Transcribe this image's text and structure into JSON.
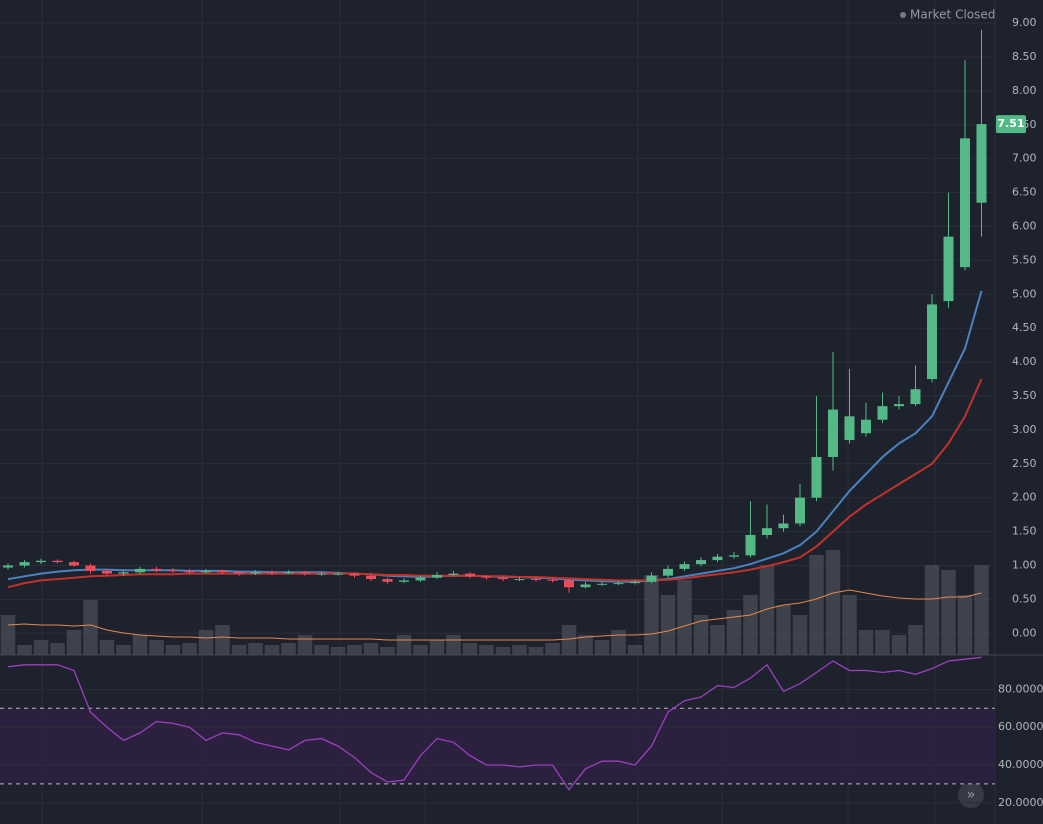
{
  "status_text": "Market Closed",
  "chart_data": [
    {
      "type": "candlestick",
      "open": [
        0.97,
        1.0,
        1.05,
        1.07,
        1.05,
        1.0,
        0.92,
        0.88,
        0.9,
        0.95,
        0.93,
        0.92,
        0.9,
        0.92,
        0.9,
        0.88,
        0.9,
        0.89,
        0.9,
        0.88,
        0.88,
        0.88,
        0.85,
        0.8,
        0.76,
        0.78,
        0.82,
        0.86,
        0.88,
        0.84,
        0.82,
        0.8,
        0.8,
        0.79,
        0.78,
        0.68,
        0.72,
        0.73,
        0.74,
        0.76,
        0.85,
        0.95,
        1.02,
        1.08,
        1.13,
        1.15,
        1.45,
        1.55,
        1.62,
        2.0,
        2.6,
        2.85,
        2.95,
        3.15,
        3.35,
        3.38,
        3.75,
        4.9,
        5.4,
        6.35
      ],
      "high": [
        1.03,
        1.08,
        1.1,
        1.09,
        1.07,
        1.03,
        0.95,
        0.93,
        0.98,
        0.98,
        0.96,
        0.95,
        0.95,
        0.94,
        0.92,
        0.93,
        0.93,
        0.93,
        0.92,
        0.91,
        0.91,
        0.9,
        0.87,
        0.82,
        0.81,
        0.85,
        0.9,
        0.92,
        0.9,
        0.86,
        0.84,
        0.83,
        0.83,
        0.82,
        0.8,
        0.76,
        0.76,
        0.77,
        0.79,
        0.9,
        1.0,
        1.06,
        1.12,
        1.17,
        1.2,
        1.95,
        1.9,
        1.75,
        2.2,
        3.5,
        4.15,
        3.9,
        3.4,
        3.55,
        3.5,
        3.95,
        5.0,
        6.5,
        8.45,
        8.9
      ],
      "low": [
        0.94,
        0.97,
        1.02,
        1.03,
        0.98,
        0.88,
        0.85,
        0.85,
        0.87,
        0.9,
        0.89,
        0.87,
        0.88,
        0.87,
        0.85,
        0.86,
        0.86,
        0.87,
        0.85,
        0.85,
        0.85,
        0.82,
        0.77,
        0.73,
        0.74,
        0.76,
        0.8,
        0.84,
        0.81,
        0.79,
        0.77,
        0.77,
        0.76,
        0.75,
        0.6,
        0.66,
        0.7,
        0.71,
        0.72,
        0.74,
        0.82,
        0.92,
        0.99,
        1.05,
        1.1,
        1.12,
        1.4,
        1.5,
        1.58,
        1.95,
        2.4,
        2.8,
        2.9,
        3.1,
        3.3,
        3.35,
        3.7,
        4.8,
        5.35,
        5.85
      ],
      "close": [
        1.0,
        1.05,
        1.07,
        1.05,
        1.0,
        0.92,
        0.88,
        0.9,
        0.95,
        0.93,
        0.92,
        0.9,
        0.92,
        0.9,
        0.88,
        0.9,
        0.89,
        0.9,
        0.88,
        0.88,
        0.88,
        0.85,
        0.8,
        0.76,
        0.78,
        0.82,
        0.86,
        0.88,
        0.84,
        0.82,
        0.8,
        0.8,
        0.79,
        0.78,
        0.68,
        0.72,
        0.73,
        0.74,
        0.76,
        0.85,
        0.95,
        1.02,
        1.08,
        1.13,
        1.15,
        1.45,
        1.55,
        1.62,
        2.0,
        2.6,
        3.3,
        3.2,
        3.15,
        3.35,
        3.38,
        3.6,
        4.85,
        5.85,
        7.3,
        7.51
      ],
      "volume": [
        40,
        10,
        15,
        12,
        25,
        55,
        15,
        10,
        20,
        15,
        10,
        12,
        25,
        30,
        10,
        12,
        10,
        12,
        20,
        10,
        8,
        10,
        12,
        8,
        20,
        10,
        15,
        20,
        12,
        10,
        8,
        10,
        8,
        12,
        30,
        20,
        15,
        25,
        10,
        80,
        60,
        75,
        40,
        30,
        45,
        60,
        90,
        50,
        40,
        100,
        105,
        60,
        25,
        25,
        20,
        30,
        90,
        85,
        60,
        90
      ],
      "vlim": [
        0,
        120
      ],
      "up_color": "#53b987",
      "down_color": "#eb4d5c",
      "volume_color": "#4a4d57",
      "moving_averages": [
        {
          "color": "#4a83c0",
          "values": [
            0.8,
            0.84,
            0.88,
            0.91,
            0.93,
            0.94,
            0.94,
            0.93,
            0.93,
            0.93,
            0.93,
            0.92,
            0.92,
            0.92,
            0.91,
            0.91,
            0.9,
            0.9,
            0.9,
            0.9,
            0.89,
            0.88,
            0.87,
            0.85,
            0.84,
            0.83,
            0.84,
            0.85,
            0.85,
            0.84,
            0.83,
            0.83,
            0.82,
            0.81,
            0.79,
            0.78,
            0.77,
            0.76,
            0.76,
            0.78,
            0.8,
            0.84,
            0.88,
            0.92,
            0.96,
            1.02,
            1.1,
            1.18,
            1.3,
            1.5,
            1.8,
            2.1,
            2.35,
            2.6,
            2.8,
            2.95,
            3.2,
            3.7,
            4.2,
            5.05
          ]
        },
        {
          "color": "#c0322b",
          "values": [
            0.68,
            0.74,
            0.78,
            0.8,
            0.82,
            0.84,
            0.85,
            0.86,
            0.87,
            0.87,
            0.87,
            0.88,
            0.88,
            0.88,
            0.88,
            0.88,
            0.88,
            0.88,
            0.88,
            0.88,
            0.88,
            0.88,
            0.87,
            0.86,
            0.86,
            0.85,
            0.85,
            0.85,
            0.85,
            0.84,
            0.84,
            0.83,
            0.83,
            0.82,
            0.81,
            0.8,
            0.79,
            0.78,
            0.78,
            0.78,
            0.79,
            0.81,
            0.84,
            0.87,
            0.9,
            0.94,
            0.99,
            1.05,
            1.12,
            1.28,
            1.5,
            1.72,
            1.9,
            2.05,
            2.2,
            2.35,
            2.5,
            2.8,
            3.2,
            3.75
          ]
        }
      ],
      "volume_ma": {
        "color": "#e8884a",
        "values": [
          30,
          31,
          30,
          30,
          29,
          30,
          25,
          22,
          20,
          19,
          18,
          18,
          17,
          18,
          17,
          17,
          17,
          16,
          16,
          16,
          16,
          16,
          16,
          15,
          15,
          15,
          15,
          15,
          15,
          15,
          15,
          15,
          15,
          15,
          16,
          18,
          19,
          20,
          20,
          21,
          24,
          29,
          34,
          36,
          38,
          40,
          46,
          50,
          52,
          56,
          62,
          65,
          62,
          59,
          57,
          56,
          56,
          58,
          58,
          62
        ]
      },
      "ylim": [
        -0.32,
        9.34
      ],
      "yticks": [
        {
          "value": 0,
          "label": "0.00"
        },
        {
          "value": 0.5,
          "label": "0.50"
        },
        {
          "value": 1,
          "label": "1.00"
        },
        {
          "value": 1.5,
          "label": "1.50"
        },
        {
          "value": 2,
          "label": "2.00"
        },
        {
          "value": 2.5,
          "label": "2.50"
        },
        {
          "value": 3,
          "label": "3.00"
        },
        {
          "value": 3.5,
          "label": "3.50"
        },
        {
          "value": 4,
          "label": "4.00"
        },
        {
          "value": 4.5,
          "label": "4.50"
        },
        {
          "value": 5,
          "label": "5.00"
        },
        {
          "value": 5.5,
          "label": "5.50"
        },
        {
          "value": 6,
          "label": "6.00"
        },
        {
          "value": 6.5,
          "label": "6.50"
        },
        {
          "value": 7,
          "label": "7.00"
        },
        {
          "value": 7.5,
          "label": "7.50"
        },
        {
          "value": 8,
          "label": "8.00"
        },
        {
          "value": 8.5,
          "label": "8.50"
        },
        {
          "value": 9,
          "label": "9.00"
        }
      ],
      "grid": true
    },
    {
      "type": "line",
      "values": [
        92,
        93,
        93,
        93,
        90,
        68,
        60,
        53,
        57,
        63,
        62,
        60,
        53,
        57,
        56,
        52,
        50,
        48,
        53,
        54,
        50,
        44,
        36,
        31,
        32,
        45,
        54,
        52,
        45,
        40,
        40,
        39,
        40,
        40,
        27,
        38,
        42,
        42,
        40,
        50,
        68,
        74,
        76,
        82,
        81,
        86,
        93,
        79,
        83,
        89,
        95,
        90,
        90,
        89,
        90,
        88,
        91,
        95,
        96,
        97
      ],
      "color": "#9c3fc0",
      "levels": [
        30,
        70
      ],
      "band_color": "#2c2140",
      "ylim": [
        8.8,
        98.2
      ],
      "yticks": [
        {
          "value": 20,
          "label": "20.0000"
        },
        {
          "value": 40,
          "label": "40.0000"
        },
        {
          "value": 60,
          "label": "60.0000"
        },
        {
          "value": 80,
          "label": "80.0000"
        }
      ],
      "grid": true
    }
  ]
}
